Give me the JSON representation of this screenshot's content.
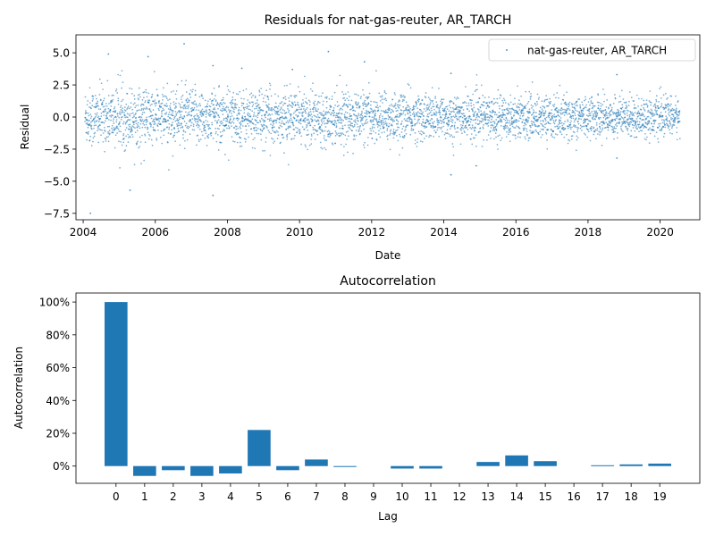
{
  "colors": {
    "series": "#1f77b4",
    "axes": "#000000",
    "background": "#ffffff"
  },
  "chart_data": [
    {
      "type": "scatter",
      "title": "Residuals for nat-gas-reuter, AR_TARCH",
      "xlabel": "Date",
      "ylabel": "Residual",
      "x_range": [
        2003.8,
        2021.1
      ],
      "ylim": [
        -8.0,
        6.4
      ],
      "x_ticks": [
        2004,
        2006,
        2008,
        2010,
        2012,
        2014,
        2016,
        2018,
        2020
      ],
      "x_tick_labels": [
        "2004",
        "2006",
        "2008",
        "2010",
        "2012",
        "2014",
        "2016",
        "2018",
        "2020"
      ],
      "y_ticks": [
        -7.5,
        -5.0,
        -2.5,
        0.0,
        2.5,
        5.0
      ],
      "y_tick_labels": [
        "−7.5",
        "−5.0",
        "−2.5",
        "0.0",
        "2.5",
        "5.0"
      ],
      "legend": {
        "label": "nat-gas-reuter, AR_TARCH",
        "position": "top-right"
      },
      "series": {
        "name": "nat-gas-reuter, AR_TARCH",
        "x_start": 2004.05,
        "x_end": 2020.55,
        "n_points": 4200,
        "typical_std": 0.9,
        "notable_points": [
          {
            "x": 2004.2,
            "y": -7.5
          },
          {
            "x": 2004.7,
            "y": 4.9
          },
          {
            "x": 2005.3,
            "y": -5.7
          },
          {
            "x": 2005.8,
            "y": 4.7
          },
          {
            "x": 2006.8,
            "y": 5.7
          },
          {
            "x": 2007.6,
            "y": -6.1
          },
          {
            "x": 2007.6,
            "y": 4.0
          },
          {
            "x": 2008.4,
            "y": 3.8
          },
          {
            "x": 2009.8,
            "y": 3.7
          },
          {
            "x": 2010.8,
            "y": 5.1
          },
          {
            "x": 2011.8,
            "y": 4.3
          },
          {
            "x": 2014.2,
            "y": -4.5
          },
          {
            "x": 2014.2,
            "y": 3.4
          },
          {
            "x": 2014.9,
            "y": -3.8
          },
          {
            "x": 2018.8,
            "y": 3.3
          },
          {
            "x": 2018.8,
            "y": -3.2
          }
        ]
      }
    },
    {
      "type": "bar",
      "title": "Autocorrelation",
      "xlabel": "Lag",
      "ylabel": "Autocorrelation",
      "categories": [
        "0",
        "1",
        "2",
        "3",
        "4",
        "5",
        "6",
        "7",
        "8",
        "9",
        "10",
        "11",
        "12",
        "13",
        "14",
        "15",
        "16",
        "17",
        "18",
        "19"
      ],
      "values": [
        100.0,
        -6.0,
        -2.5,
        -6.0,
        -4.5,
        22.0,
        -2.5,
        4.0,
        -0.5,
        0.0,
        -1.5,
        -1.5,
        0.0,
        2.5,
        6.5,
        3.0,
        0.0,
        0.5,
        1.0,
        1.5
      ],
      "value_unit": "percent",
      "ylim": [
        -10.5,
        105.5
      ],
      "y_ticks": [
        0,
        20,
        40,
        60,
        80,
        100
      ],
      "y_tick_labels": [
        "0%",
        "20%",
        "40%",
        "60%",
        "80%",
        "100%"
      ]
    }
  ]
}
